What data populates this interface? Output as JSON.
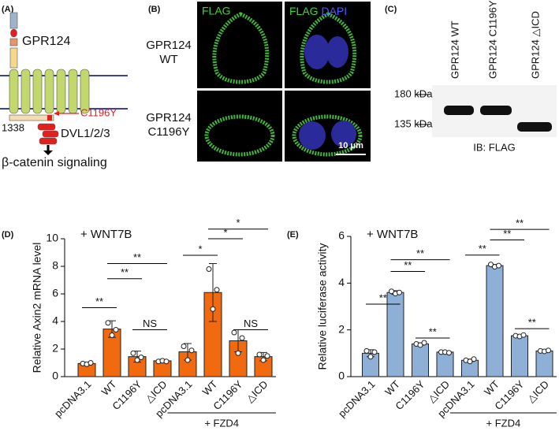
{
  "panels": {
    "A": {
      "label": "(A)",
      "protein": "GPR124",
      "mutation": "C1196Y",
      "residue": "1338",
      "partner": "DVL1/2/3",
      "output": "β-catenin signaling"
    },
    "B": {
      "label": "(B)",
      "rows": [
        [
          "GPR124",
          "WT"
        ],
        [
          "GPR124",
          "C1196Y"
        ]
      ],
      "columns": [
        [
          "FLAG"
        ],
        [
          "FLAG",
          "DAPI"
        ]
      ],
      "scale": "10 μm"
    },
    "C": {
      "label": "(C)",
      "lanes": [
        "GPR124 WT",
        "GPR124 C1196Y",
        "GPR124 △ICD"
      ],
      "markers": [
        "180 kDa",
        "135 kDa"
      ],
      "caption": "IB: FLAG"
    }
  },
  "chart_data": [
    {
      "type": "bar",
      "panel": "(D)",
      "title": "+ WNT7B",
      "ylabel": "Relative Axin2 mRNA level",
      "categories": [
        "pcDNA3.1",
        "WT",
        "C1196Y",
        "△ICD",
        "pcDNA3.1",
        "WT",
        "C1196Y",
        "△ICD"
      ],
      "values": [
        0.95,
        3.45,
        1.45,
        1.15,
        1.8,
        6.1,
        2.6,
        1.45
      ],
      "errors": [
        0.1,
        0.6,
        0.4,
        0.1,
        0.6,
        2.1,
        0.8,
        0.3
      ],
      "points": [
        [
          0.95,
          0.9,
          1.0
        ],
        [
          3.9,
          3.0,
          3.4
        ],
        [
          1.7,
          1.2,
          1.4
        ],
        [
          1.1,
          1.15,
          1.1
        ],
        [
          2.2,
          1.2,
          1.9
        ],
        [
          7.8,
          4.9,
          6.3
        ],
        [
          3.2,
          1.7,
          2.8
        ],
        [
          1.6,
          1.2,
          1.5
        ]
      ],
      "color": "#f26a10",
      "ylim": [
        0,
        10
      ],
      "yticks": [
        0,
        2,
        4,
        6,
        8,
        10
      ],
      "group_label": "+ FZD4",
      "annotations": [
        "**",
        "**",
        "**",
        "NS",
        "*",
        "*",
        "*",
        "NS"
      ]
    },
    {
      "type": "bar",
      "panel": "(E)",
      "title": "+ WNT7B",
      "ylabel": "Relative luciferase activity",
      "categories": [
        "pcDNA3.1",
        "WT",
        "C1196Y",
        "△ICD",
        "pcDNA3.1",
        "WT",
        "C1196Y",
        "△ICD"
      ],
      "values": [
        1.0,
        3.6,
        1.4,
        1.05,
        0.7,
        4.75,
        1.75,
        1.1
      ],
      "errors": [
        0.15,
        0.08,
        0.05,
        0.03,
        0.05,
        0.05,
        0.05,
        0.03
      ],
      "points": [
        [
          1.1,
          0.85,
          1.05
        ],
        [
          3.65,
          3.55,
          3.6
        ],
        [
          1.4,
          1.35,
          1.45
        ],
        [
          1.05,
          1.05,
          1.02
        ],
        [
          0.7,
          0.65,
          0.75
        ],
        [
          4.8,
          4.7,
          4.75
        ],
        [
          1.75,
          1.72,
          1.78
        ],
        [
          1.1,
          1.08,
          1.12
        ]
      ],
      "color": "#8fb0d6",
      "ylim": [
        0,
        6
      ],
      "yticks": [
        0,
        2,
        4,
        6
      ],
      "group_label": "+ FZD4",
      "annotations": [
        "**",
        "**",
        "**",
        "**",
        "**",
        "**",
        "**",
        "**"
      ]
    }
  ]
}
